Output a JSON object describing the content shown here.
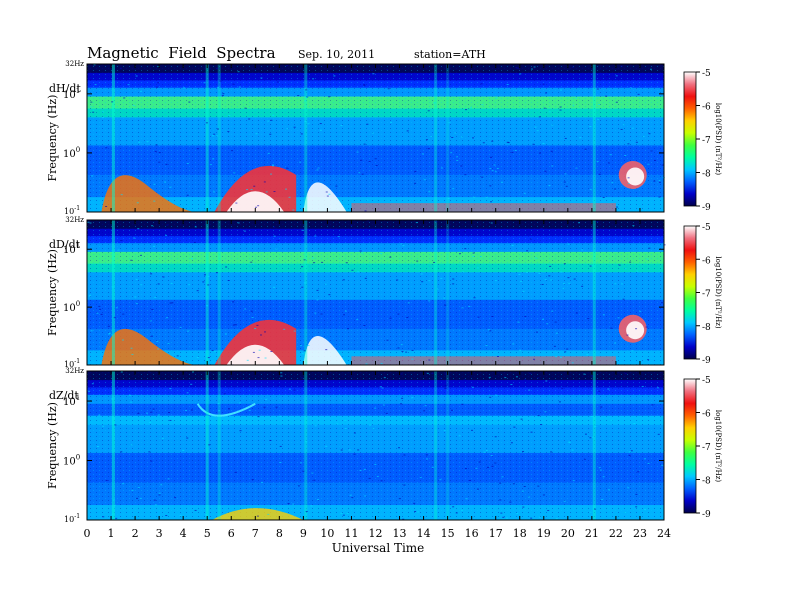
{
  "chart_data": {
    "type": "heatmap",
    "title": "Magnetic  Field  Spectra",
    "date": "Sep. 10, 2011",
    "station": "station=ATH",
    "xlabel": "Universal Time",
    "ylabel": "Frequency  (Hz)",
    "x_ticks": [
      "0",
      "1",
      "2",
      "3",
      "4",
      "5",
      "6",
      "7",
      "8",
      "9",
      "10",
      "11",
      "12",
      "13",
      "14",
      "15",
      "16",
      "17",
      "18",
      "19",
      "20",
      "21",
      "22",
      "23",
      "24"
    ],
    "xlim": [
      0,
      24
    ],
    "y_scale": "log",
    "ylim": [
      0.1,
      32
    ],
    "y_top_label": "32Hz",
    "y_bottom_label": "10",
    "y_bottom_exp": "-1",
    "y_tick_mantissa": "10",
    "y_ticks": [
      {
        "value": 10,
        "exp": "1"
      },
      {
        "value": 1,
        "exp": "0"
      }
    ],
    "colorbar": {
      "label": "log10(PSD) (nT²/Hz)",
      "range": [
        -9,
        -5
      ],
      "ticks": [
        "-5",
        "-6",
        "-7",
        "-8",
        "-9"
      ],
      "colors": [
        "#00004a",
        "#0000c8",
        "#0060ff",
        "#00c8ff",
        "#00ffa0",
        "#40ff40",
        "#c8ff00",
        "#ffd000",
        "#ff6000",
        "#f01010",
        "#f07080",
        "#ffffff"
      ]
    },
    "panels": [
      {
        "name": "dH/dt"
      },
      {
        "name": "dD/dt"
      },
      {
        "name": "dZ/dt"
      }
    ]
  }
}
